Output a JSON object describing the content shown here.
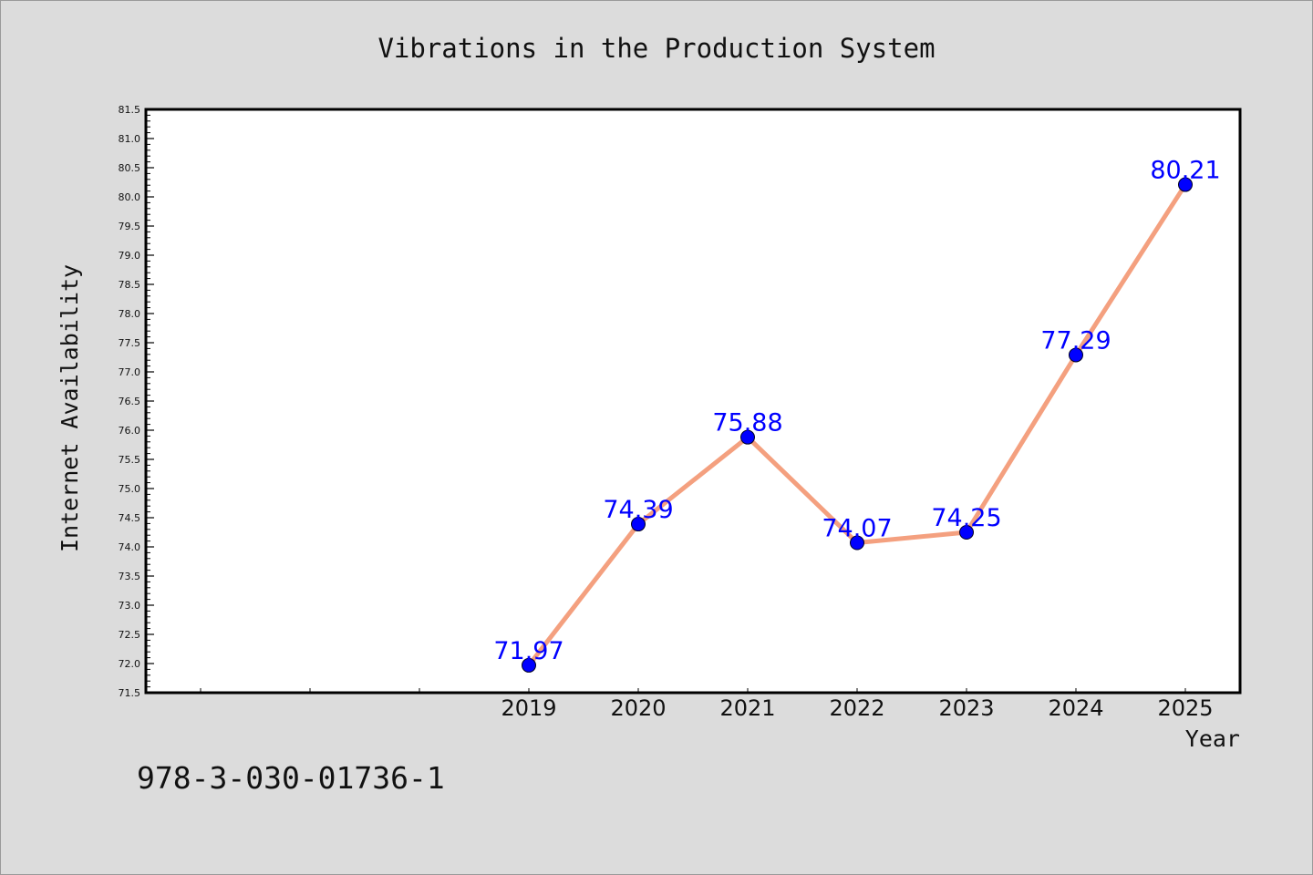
{
  "chart_data": {
    "type": "line",
    "title": "Vibrations in the Production System",
    "xlabel": "Year",
    "ylabel": "Internet Availability",
    "x": [
      "2019",
      "2020",
      "2021",
      "2022",
      "2023",
      "2024",
      "2025"
    ],
    "series": [
      {
        "values": [
          71.97,
          74.39,
          75.88,
          74.07,
          74.25,
          77.29,
          80.21
        ],
        "labels": [
          "71.97",
          "74.39",
          "75.88",
          "74.07",
          "74.25",
          "77.29",
          "80.21"
        ]
      }
    ],
    "ylim": [
      71.5,
      81.5
    ],
    "yticks": [
      "71.5",
      "72.0",
      "72.5",
      "73.0",
      "73.5",
      "74.0",
      "74.5",
      "75.0",
      "75.5",
      "76.0",
      "76.5",
      "77.0",
      "77.5",
      "78.0",
      "78.5",
      "79.0",
      "79.5",
      "80.0",
      "80.5",
      "81.0",
      "81.5"
    ],
    "line_color": "#f4a07f",
    "marker_color": "#0000ff",
    "data_label_color": "#0000ff",
    "background_color": "#dcdcdc",
    "plot_background_color": "#ffffff",
    "grid": false,
    "legend": "none"
  },
  "footer": {
    "isbn": "978-3-030-01736-1"
  }
}
